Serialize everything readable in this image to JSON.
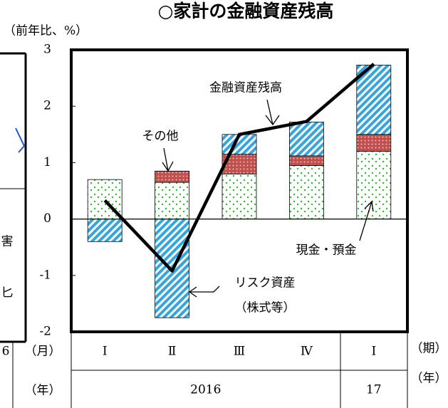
{
  "chart_data": {
    "type": "bar",
    "title": "○家計の金融資産残高",
    "y_unit": "（前年比、%）",
    "period_unit": "（期）",
    "year_unit": "（年）",
    "left_month_label": "（月）",
    "left_year_label": "（年）",
    "left_fragments": [
      "6",
      "害",
      "匕"
    ],
    "categories": [
      "Ⅰ",
      "Ⅱ",
      "Ⅲ",
      "Ⅳ",
      "Ⅰ"
    ],
    "years": [
      "2016",
      "17"
    ],
    "series": [
      {
        "name": "現金・預金",
        "color": "#2eb82e",
        "values": [
          0.7,
          0.65,
          0.8,
          0.95,
          1.2
        ]
      },
      {
        "name": "その他",
        "color": "#c0504d",
        "values": [
          0,
          0.2,
          0.35,
          0.17,
          0.3
        ]
      },
      {
        "name": "リスク資産",
        "sub": "（株式等）",
        "color": "#33a6e0",
        "values": [
          -0.4,
          -1.75,
          0.35,
          0.6,
          1.23
        ]
      },
      {
        "name": "金融資産残高",
        "type": "line",
        "color": "#000000",
        "values": [
          0.33,
          -0.92,
          1.5,
          1.73,
          2.75
        ]
      }
    ],
    "ylim": [
      -2,
      3
    ],
    "yticks": [
      -2,
      -1,
      0,
      1,
      2,
      3
    ],
    "grid": false
  }
}
